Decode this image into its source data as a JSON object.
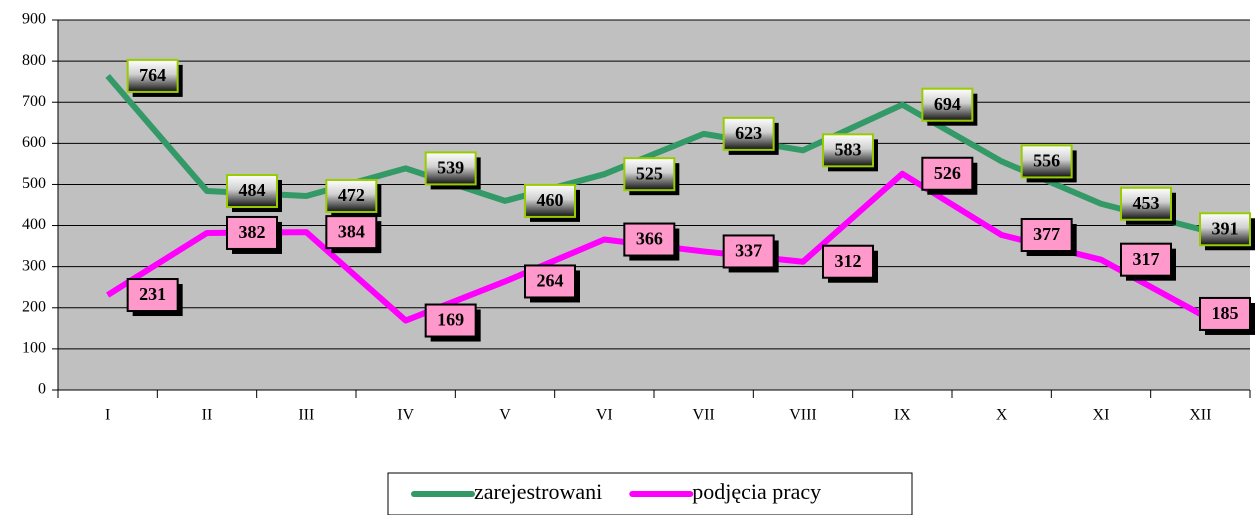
{
  "chart_data": {
    "type": "line",
    "categories": [
      "I",
      "II",
      "III",
      "IV",
      "V",
      "VI",
      "VII",
      "VIII",
      "IX",
      "X",
      "XI",
      "XII"
    ],
    "series": [
      {
        "name": "zarejestrowani",
        "color": "#339966",
        "values": [
          764,
          484,
          472,
          539,
          460,
          525,
          623,
          583,
          694,
          556,
          453,
          391
        ]
      },
      {
        "name": "podjęcia pracy",
        "color": "#ff00ff",
        "values": [
          231,
          382,
          384,
          169,
          264,
          366,
          337,
          312,
          526,
          377,
          317,
          185
        ]
      }
    ],
    "ylim": [
      0,
      900
    ],
    "yticks": [
      0,
      100,
      200,
      300,
      400,
      500,
      600,
      700,
      800,
      900
    ],
    "grid": true,
    "legend": "bottom"
  }
}
